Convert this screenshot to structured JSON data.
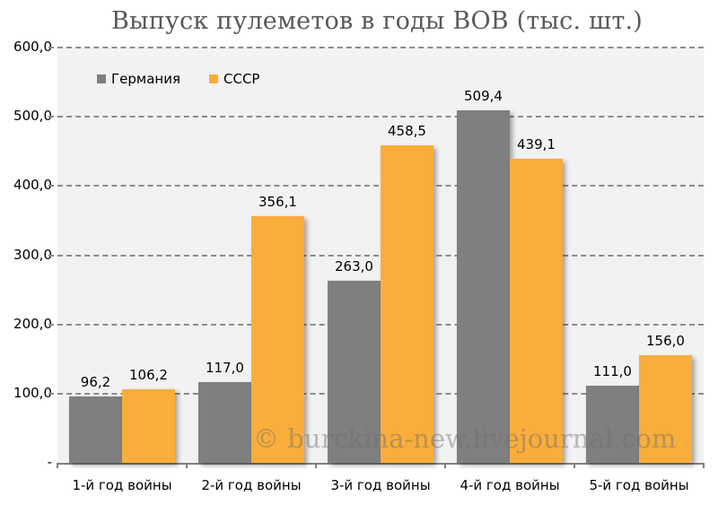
{
  "chart_data": {
    "type": "bar",
    "title": "Выпуск пулеметов в годы ВОВ (тыс. шт.)",
    "xlabel": "",
    "ylabel": "",
    "categories": [
      "1-й год войны",
      "2-й год войны",
      "3-й год войны",
      "4-й год войны",
      "5-й год войны"
    ],
    "series": [
      {
        "name": "Германия",
        "color": "#7f7f7f",
        "values": [
          96.2,
          117.0,
          263.0,
          509.4,
          111.0
        ],
        "labels": [
          "96,2",
          "117,0",
          "263,0",
          "509,4",
          "111,0"
        ]
      },
      {
        "name": "СССР",
        "color": "#f9ad3a",
        "values": [
          106.2,
          356.1,
          458.5,
          439.1,
          156.0
        ],
        "labels": [
          "106,2",
          "356,1",
          "458,5",
          "439,1",
          "156,0"
        ]
      }
    ],
    "ylim": [
      0,
      600
    ],
    "yticks": [
      "-",
      "100,0",
      "200,0",
      "300,0",
      "400,0",
      "500,0",
      "600,0"
    ],
    "grid": true,
    "legend_position": "top-left inside"
  },
  "watermark": "© burckina-new.livejournal.com"
}
